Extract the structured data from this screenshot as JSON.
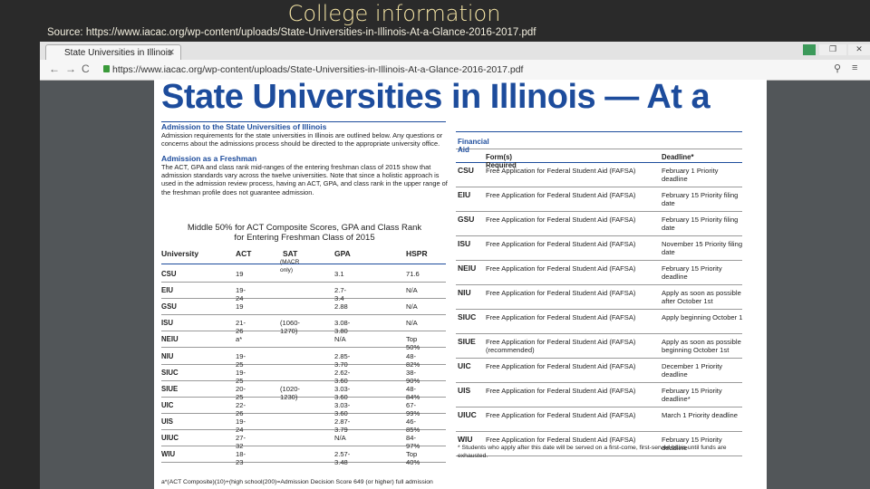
{
  "slide": {
    "title": "College information",
    "source": "Source: https://www.iacac.org/wp-content/uploads/State-Universities-in-Illinois-At-a-Glance-2016-2017.pdf"
  },
  "browser": {
    "tab_title": "State Universities in Illinois",
    "url": "https://www.iacac.org/wp-content/uploads/State-Universities-in-Illinois-At-a-Glance-2016-2017.pdf"
  },
  "document": {
    "heading": "State Universities in Illinois — At a",
    "admission": {
      "heading": "Admission to the State Universities of Illinois",
      "text": "Admission requirements for the state universities in Illinois are outlined below. Any questions or concerns about the admissions process should be directed to the appropriate university office."
    },
    "freshman": {
      "heading": "Admission as a Freshman",
      "text": "The ACT, GPA and class rank mid-ranges of the entering freshman class of 2015 show that admission standards vary across the twelve universities. Note that since a holistic approach is used in the admission review process, having an ACT, GPA, and class rank in the upper range of the freshman profile does not guarantee admission."
    },
    "scores_table": {
      "title": [
        "Middle 50% for ACT Composite Scores, GPA and Class Rank",
        "for Entering Freshman Class of 2015"
      ],
      "headers": [
        "University",
        "ACT",
        "SAT",
        "GPA",
        "HSPR"
      ],
      "sat_note": "(MACR only)",
      "rows": [
        [
          "CSU",
          "19",
          null,
          "3.1",
          "71.6"
        ],
        [
          "EIU",
          "19-24",
          null,
          "2.7-3.4",
          "N/A"
        ],
        [
          "GSU",
          "19",
          null,
          "2.88",
          "N/A"
        ],
        [
          "ISU",
          "21-26",
          "(1060-1270)",
          "3.08-3.80",
          "N/A"
        ],
        [
          "NEIU",
          "a*",
          null,
          "N/A",
          "Top 50%"
        ],
        [
          "NIU",
          "19-25",
          null,
          "2.85-3.70",
          "48-82%"
        ],
        [
          "SIUC",
          "19-25",
          null,
          "2.62-3.60",
          "38-90%"
        ],
        [
          "SIUE",
          "20-25",
          "(1020-1230)",
          "3.03-3.60",
          "48-84%"
        ],
        [
          "UIC",
          "22-26",
          null,
          "3.03-3.60",
          "67-99%"
        ],
        [
          "UIS",
          "19-24",
          null,
          "2.87-3.79",
          "46-85%"
        ],
        [
          "UIUC",
          "27-32",
          null,
          "N/A",
          "84-97%"
        ],
        [
          "WIU",
          "18-23",
          null,
          "2.57-3.48",
          "Top 40%"
        ]
      ],
      "footnote": "a*(ACT Composite)(10)+(high school(200)=Admission Decision Score 649 (or higher) full admission"
    },
    "aid_table": {
      "title": "Financial Aid",
      "headers": [
        "Form(s) Required",
        "Deadline*"
      ],
      "rows": [
        [
          "CSU",
          "Free Application for Federal Student Aid (FAFSA)",
          "February 1 Priority deadline"
        ],
        [
          "EIU",
          "Free Application for Federal Student Aid (FAFSA)",
          "February 15 Priority filing date"
        ],
        [
          "GSU",
          "Free Application for Federal Student Aid (FAFSA)",
          "February 15 Priority filing date"
        ],
        [
          "ISU",
          "Free Application for Federal Student Aid (FAFSA)",
          "November 15 Priority filing date"
        ],
        [
          "NEIU",
          "Free Application for Federal Student Aid (FAFSA)",
          "February 15 Priority deadline"
        ],
        [
          "NIU",
          "Free Application for Federal Student Aid (FAFSA)",
          "Apply as soon as possible after October 1st"
        ],
        [
          "SIUC",
          "Free Application for Federal Student Aid (FAFSA)",
          "Apply beginning October 1"
        ],
        [
          "SIUE",
          "Free Application for Federal Student Aid (FAFSA) (recommended)",
          "Apply as soon as possible beginning October 1st"
        ],
        [
          "UIC",
          "Free Application for Federal Student Aid (FAFSA)",
          "December 1 Priority deadline"
        ],
        [
          "UIS",
          "Free Application for Federal Student Aid (FAFSA)",
          "February 15 Priority deadline*"
        ],
        [
          "UIUC",
          "Free Application for Federal Student Aid (FAFSA)",
          "March 1 Priority deadline"
        ],
        [
          "WIU",
          "Free Application for Federal Student Aid (FAFSA)",
          "February 15 Priority deadline"
        ]
      ],
      "footnote": "* Students who apply after this date will be served on a first-come, first-served basis until funds are exhausted."
    }
  }
}
